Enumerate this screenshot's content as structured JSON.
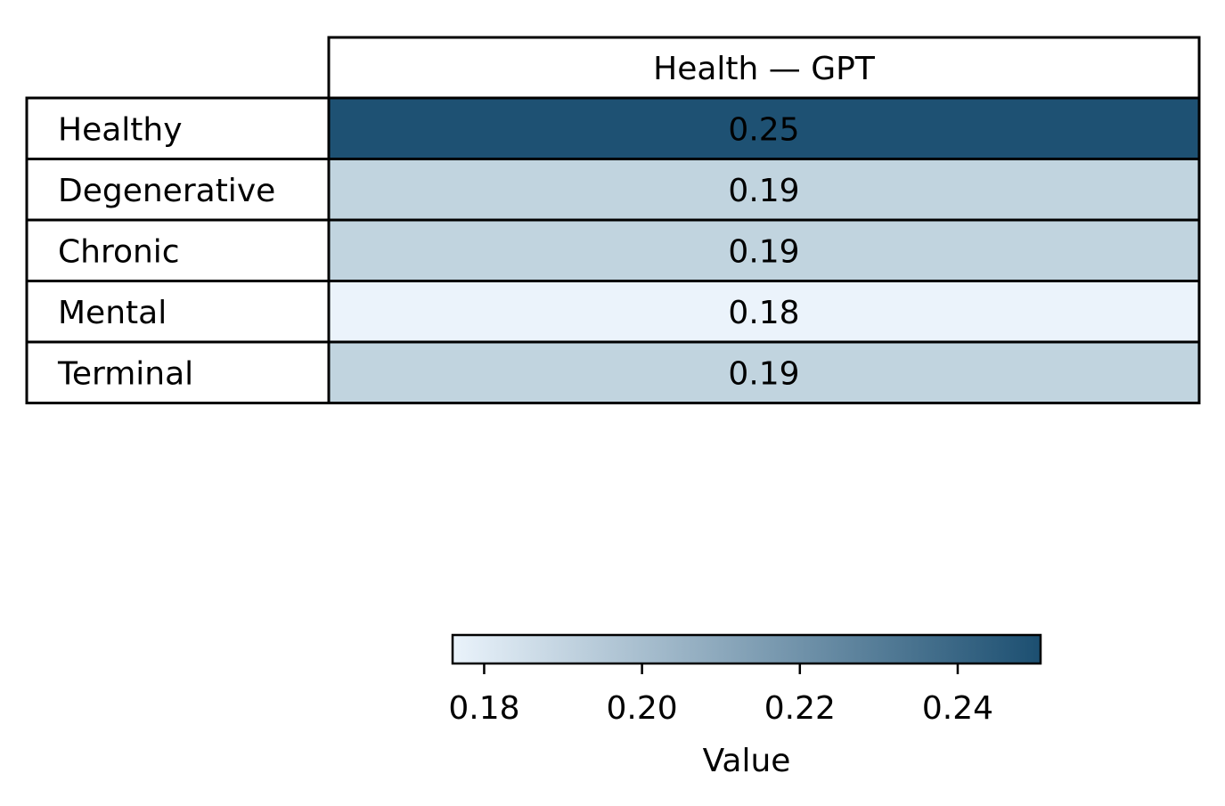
{
  "chart_data": {
    "type": "heatmap",
    "title": "",
    "column_header": "Health — GPT",
    "rows": [
      {
        "label": "Healthy",
        "value": 0.25,
        "display": "0.25"
      },
      {
        "label": "Degenerative",
        "value": 0.19,
        "display": "0.19"
      },
      {
        "label": "Chronic",
        "value": 0.19,
        "display": "0.19"
      },
      {
        "label": "Mental",
        "value": 0.18,
        "display": "0.18"
      },
      {
        "label": "Terminal",
        "value": 0.19,
        "display": "0.19"
      }
    ],
    "colorbar": {
      "label": "Value",
      "range": [
        0.176,
        0.2505
      ],
      "ticks": [
        {
          "value": 0.18,
          "label": "0.18"
        },
        {
          "value": 0.2,
          "label": "0.20"
        },
        {
          "value": 0.22,
          "label": "0.22"
        },
        {
          "value": 0.24,
          "label": "0.24"
        }
      ],
      "color_low": "#eaf3fb",
      "color_high": "#1c4f71"
    },
    "cell_colors": [
      "#1e5173",
      "#c1d4df",
      "#c1d4df",
      "#ebf3fb",
      "#c1d4df"
    ],
    "grid": false,
    "legend": "none"
  }
}
